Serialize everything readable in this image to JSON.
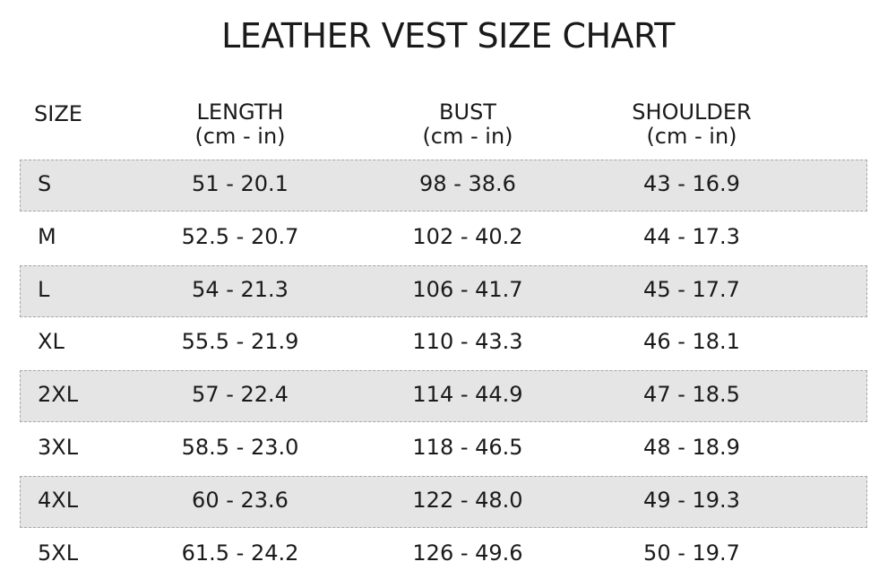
{
  "header": {
    "title": "LEATHER VEST SIZE CHART"
  },
  "table": {
    "columns": [
      {
        "label": "SIZE"
      },
      {
        "label": "LENGTH",
        "unit": "(cm - in)"
      },
      {
        "label": "BUST",
        "unit": "(cm - in)"
      },
      {
        "label": "SHOULDER",
        "unit": "(cm - in)"
      }
    ],
    "rows": [
      [
        "S",
        "51 - 20.1",
        "98 - 38.6",
        "43 - 16.9"
      ],
      [
        "M",
        "52.5 - 20.7",
        "102 - 40.2",
        "44 - 17.3"
      ],
      [
        "L",
        "54 - 21.3",
        "106 - 41.7",
        "45 - 17.7"
      ],
      [
        "XL",
        "55.5 - 21.9",
        "110 - 43.3",
        "46 - 18.1"
      ],
      [
        "2XL",
        "57 - 22.4",
        "114 - 44.9",
        "47 - 18.5"
      ],
      [
        "3XL",
        "58.5 - 23.0",
        "118 - 46.5",
        "48 - 18.9"
      ],
      [
        "4XL",
        "60 - 23.6",
        "122 - 48.0",
        "49 - 19.3"
      ],
      [
        "5XL",
        "61.5 - 24.2",
        "126 - 49.6",
        "50 - 19.7"
      ]
    ]
  }
}
